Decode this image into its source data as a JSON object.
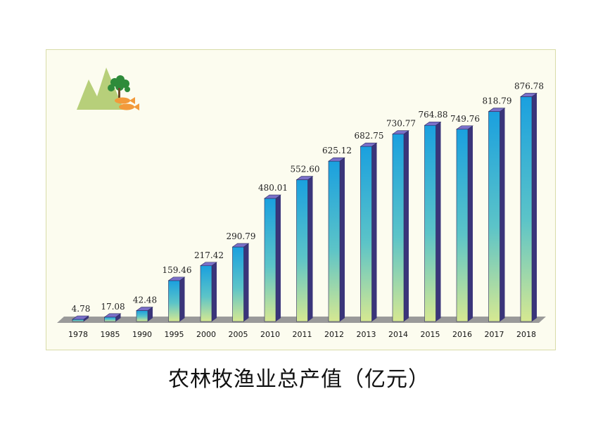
{
  "chart_data": {
    "type": "bar",
    "title": "农林牧渔业总产值（亿元）",
    "xlabel": "",
    "ylabel": "",
    "categories": [
      "1978",
      "1985",
      "1990",
      "1995",
      "2000",
      "2005",
      "2010",
      "2011",
      "2012",
      "2013",
      "2014",
      "2015",
      "2016",
      "2017",
      "2018"
    ],
    "values": [
      4.78,
      17.08,
      42.48,
      159.46,
      217.42,
      290.79,
      480.01,
      552.6,
      625.12,
      682.75,
      730.77,
      764.88,
      749.76,
      818.79,
      876.78
    ],
    "value_labels": [
      "4.78",
      "17.08",
      "42.48",
      "159.46",
      "217.42",
      "290.79",
      "480.01",
      "552.60",
      "625.12",
      "682.75",
      "730.77",
      "764.88",
      "749.76",
      "818.79",
      "876.78"
    ],
    "ylim": [
      0,
      900
    ],
    "grid": false,
    "colors": {
      "bar_top": "#1aa0df",
      "bar_bottom": "#d6e891",
      "bar_cap": "#7a70c8",
      "bar_side": "#3a357a",
      "floor": "#9a9a9a"
    }
  },
  "icons": {
    "logo": "mountain-tree-fish-logo"
  }
}
